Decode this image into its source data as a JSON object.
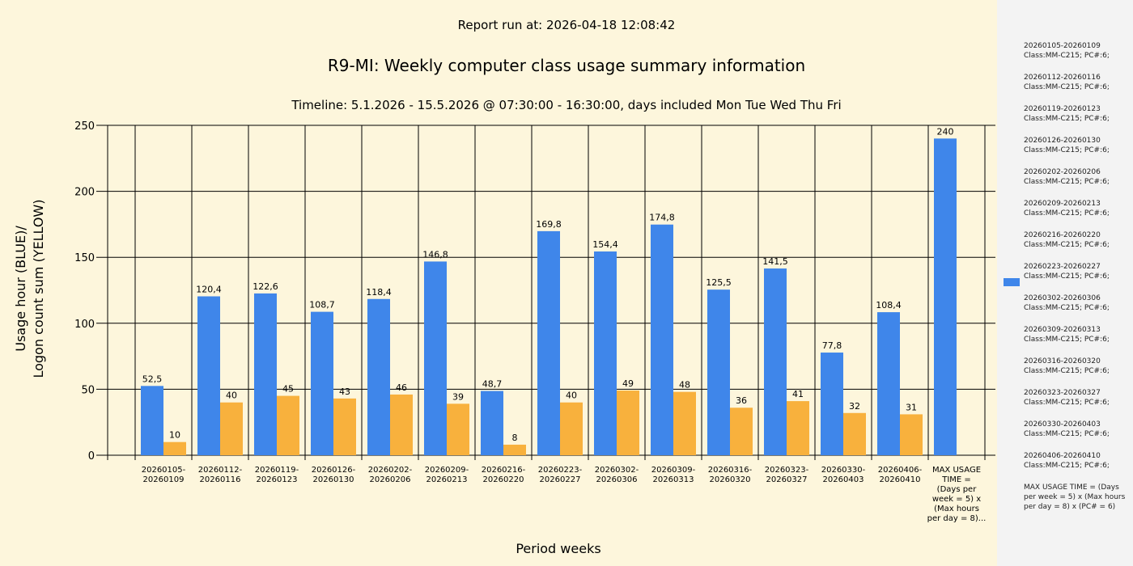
{
  "header": {
    "report_run": "Report run at: 2026-04-18 12:08:42",
    "title": "R9-MI: Weekly computer class usage summary information",
    "timeline": "Timeline:  5.1.2026  - 15.5.2026  @  07:30:00 -  16:30:00, days included Mon Tue Wed Thu Fri"
  },
  "colors": {
    "usage": "#3f86ea",
    "logon": "#f8b13d",
    "background": "#fdf6dc",
    "legend_bg": "#f3f3f3"
  },
  "legend": {
    "entries": [
      {
        "period": "20260105-20260109",
        "detail": "Class:MM-C215; PC#:6;"
      },
      {
        "period": "20260112-20260116",
        "detail": "Class:MM-C215; PC#:6;"
      },
      {
        "period": "20260119-20260123",
        "detail": "Class:MM-C215; PC#:6;"
      },
      {
        "period": "20260126-20260130",
        "detail": "Class:MM-C215; PC#:6;"
      },
      {
        "period": "20260202-20260206",
        "detail": "Class:MM-C215; PC#:6;"
      },
      {
        "period": "20260209-20260213",
        "detail": "Class:MM-C215; PC#:6;"
      },
      {
        "period": "20260216-20260220",
        "detail": "Class:MM-C215; PC#:6;"
      },
      {
        "period": "20260223-20260227",
        "detail": "Class:MM-C215; PC#:6;"
      },
      {
        "period": "20260302-20260306",
        "detail": "Class:MM-C215; PC#:6;"
      },
      {
        "period": "20260309-20260313",
        "detail": "Class:MM-C215; PC#:6;"
      },
      {
        "period": "20260316-20260320",
        "detail": "Class:MM-C215; PC#:6;"
      },
      {
        "period": "20260323-20260327",
        "detail": "Class:MM-C215; PC#:6;"
      },
      {
        "period": "20260330-20260403",
        "detail": "Class:MM-C215; PC#:6;"
      },
      {
        "period": "20260406-20260410",
        "detail": "Class:MM-C215; PC#:6;"
      }
    ],
    "footnote": "MAX USAGE TIME = (Days per week = 5) x (Max hours per day = 8) x (PC# = 6)"
  },
  "chart_data": {
    "type": "bar",
    "xlabel": "Period weeks",
    "ylabel_lines": [
      "Usage hour (BLUE)/",
      "Logon count sum (YELLOW)"
    ],
    "ylim": [
      0,
      250
    ],
    "yticks": [
      0,
      50,
      100,
      150,
      200,
      250
    ],
    "grid": true,
    "legend_position": "right",
    "categories": [
      [
        "20260105-",
        "20260109"
      ],
      [
        "20260112-",
        "20260116"
      ],
      [
        "20260119-",
        "20260123"
      ],
      [
        "20260126-",
        "20260130"
      ],
      [
        "20260202-",
        "20260206"
      ],
      [
        "20260209-",
        "20260213"
      ],
      [
        "20260216-",
        "20260220"
      ],
      [
        "20260223-",
        "20260227"
      ],
      [
        "20260302-",
        "20260306"
      ],
      [
        "20260309-",
        "20260313"
      ],
      [
        "20260316-",
        "20260320"
      ],
      [
        "20260323-",
        "20260327"
      ],
      [
        "20260330-",
        "20260403"
      ],
      [
        "20260406-",
        "20260410"
      ],
      [
        "MAX USAGE",
        "TIME =",
        "(Days per",
        "week = 5) x",
        "(Max hours",
        "per day = 8)..."
      ]
    ],
    "series": [
      {
        "name": "Usage hour (BLUE)",
        "color": "#3f86ea",
        "values": [
          52.5,
          120.4,
          122.6,
          108.7,
          118.4,
          146.8,
          48.7,
          169.8,
          154.4,
          174.8,
          125.5,
          141.5,
          77.8,
          108.4,
          240
        ],
        "labels": [
          "52,5",
          "120,4",
          "122,6",
          "108,7",
          "118,4",
          "146,8",
          "48,7",
          "169,8",
          "154,4",
          "174,8",
          "125,5",
          "141,5",
          "77,8",
          "108,4",
          "240"
        ]
      },
      {
        "name": "Logon count sum (YELLOW)",
        "color": "#f8b13d",
        "values": [
          10,
          40,
          45,
          43,
          46,
          39,
          8,
          40,
          49,
          48,
          36,
          41,
          32,
          31,
          null
        ],
        "labels": [
          "10",
          "40",
          "45",
          "43",
          "46",
          "39",
          "8",
          "40",
          "49",
          "48",
          "36",
          "41",
          "32",
          "31",
          null
        ]
      }
    ]
  }
}
